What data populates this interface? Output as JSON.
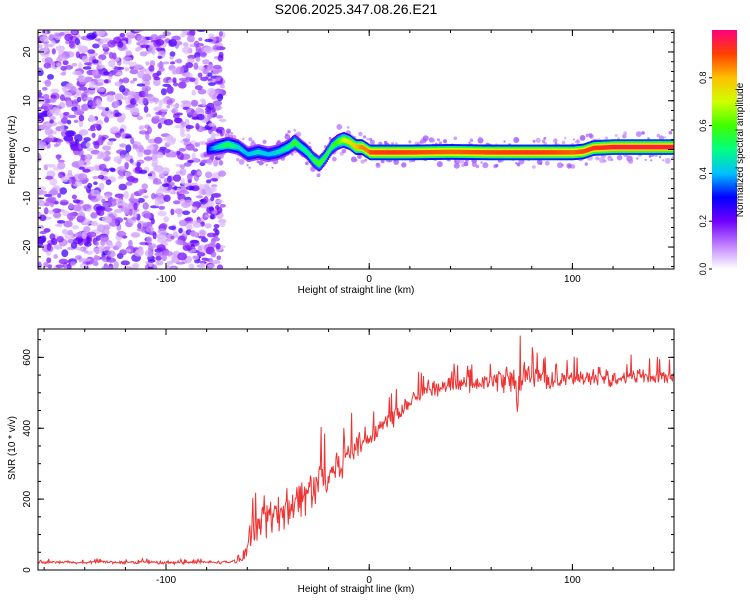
{
  "title": "S206.2025.347.08.26.E21",
  "chart_data": [
    {
      "type": "heatmap",
      "title": "S206.2025.347.08.26.E21",
      "xlabel": "Height of straight line (km)",
      "ylabel": "Frequency (Hz)",
      "xlim": [
        -163,
        150
      ],
      "ylim": [
        -24.5,
        24.5
      ],
      "xticks": [
        -100,
        0,
        100
      ],
      "xtick_labels": [
        "-100",
        "0",
        "100"
      ],
      "yticks": [
        -20,
        -10,
        0,
        10,
        20
      ],
      "ytick_labels": [
        "-20",
        "-10",
        "0",
        "10",
        "20"
      ],
      "noise_region_x": [
        -163,
        -72
      ],
      "ridge": {
        "x": [
          -80,
          -75,
          -70,
          -65,
          -60,
          -55,
          -50,
          -45,
          -40,
          -37,
          -34,
          -31,
          -28,
          -25,
          -22,
          -19,
          -16,
          -13,
          -10,
          -7,
          -4,
          -1,
          0,
          10,
          20,
          40,
          60,
          80,
          100,
          105,
          110,
          120,
          130,
          140,
          150
        ],
        "freq": [
          0,
          0.5,
          1.0,
          0.5,
          -1.0,
          -0.5,
          -1.0,
          -0.5,
          0.5,
          1.5,
          0.5,
          -0.5,
          -2.0,
          -3.0,
          -1.5,
          0.5,
          1.5,
          2.0,
          1.5,
          0.5,
          0.5,
          -0.3,
          -0.6,
          -0.6,
          -0.6,
          -0.5,
          -0.6,
          -0.6,
          -0.6,
          -0.4,
          0.3,
          0.5,
          0.5,
          0.5,
          0.5
        ],
        "amplitude": [
          0.3,
          0.45,
          0.55,
          0.45,
          0.4,
          0.45,
          0.4,
          0.45,
          0.5,
          0.6,
          0.5,
          0.5,
          0.55,
          0.6,
          0.55,
          0.55,
          0.6,
          0.7,
          0.75,
          0.8,
          0.85,
          0.85,
          0.9,
          0.92,
          0.9,
          0.88,
          0.9,
          0.92,
          0.88,
          0.9,
          0.92,
          0.95,
          0.95,
          0.95,
          0.95
        ]
      },
      "colorbar": {
        "label": "Normalized spectral amplitude",
        "range": [
          0,
          1
        ],
        "ticks": [
          0.0,
          0.2,
          0.4,
          0.6,
          0.8
        ],
        "tick_labels": [
          "0.0",
          "0.2",
          "0.4",
          "0.6",
          "0.8"
        ],
        "colors": [
          "#ffffff",
          "#c080ff",
          "#7000ff",
          "#0000ff",
          "#00c0ff",
          "#00ff80",
          "#40ff00",
          "#d0ff00",
          "#ffc000",
          "#ff4000",
          "#ff0080"
        ]
      }
    },
    {
      "type": "line",
      "xlabel": "Height of straight line (km)",
      "ylabel": "SNR (10 * v/v)",
      "xlim": [
        -163,
        150
      ],
      "ylim": [
        0,
        680
      ],
      "xticks": [
        -100,
        0,
        100
      ],
      "xtick_labels": [
        "-100",
        "0",
        "100"
      ],
      "yticks": [
        0,
        200,
        400,
        600
      ],
      "ytick_labels": [
        "0",
        "200",
        "400",
        "600"
      ],
      "line_color": "#ee3333",
      "series": [
        {
          "name": "SNR",
          "x": [
            -163,
            -150,
            -140,
            -130,
            -120,
            -110,
            -100,
            -90,
            -80,
            -70,
            -65,
            -62,
            -60,
            -55,
            -50,
            -45,
            -40,
            -35,
            -30,
            -25,
            -20,
            -15,
            -10,
            -5,
            0,
            5,
            10,
            15,
            20,
            25,
            30,
            40,
            50,
            60,
            65,
            70,
            73,
            75,
            80,
            85,
            90,
            100,
            110,
            120,
            130,
            140,
            150
          ],
          "values": [
            20,
            22,
            20,
            23,
            21,
            22,
            20,
            21,
            22,
            22,
            25,
            30,
            80,
            110,
            150,
            160,
            180,
            200,
            220,
            250,
            270,
            300,
            330,
            360,
            380,
            400,
            420,
            450,
            480,
            500,
            510,
            520,
            525,
            530,
            540,
            540,
            480,
            560,
            545,
            540,
            535,
            540,
            545,
            540,
            550,
            545,
            545
          ],
          "spread": [
            6,
            6,
            6,
            6,
            6,
            6,
            6,
            6,
            6,
            6,
            8,
            12,
            50,
            70,
            80,
            80,
            85,
            90,
            90,
            90,
            85,
            80,
            75,
            65,
            60,
            55,
            50,
            45,
            40,
            35,
            35,
            35,
            35,
            40,
            50,
            70,
            120,
            70,
            60,
            45,
            40,
            35,
            35,
            35,
            35,
            35,
            35
          ]
        }
      ]
    }
  ]
}
